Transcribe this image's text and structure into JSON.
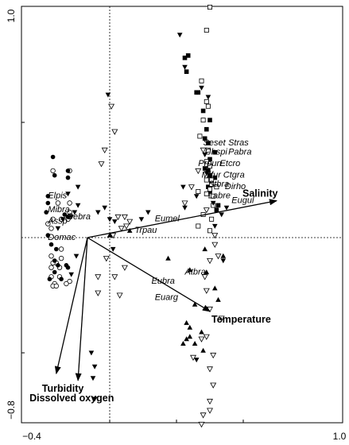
{
  "chart_data": {
    "type": "scatter",
    "title": "",
    "xlabel": "",
    "ylabel": "",
    "xlim": [
      -0.4,
      1.0
    ],
    "ylim": [
      -0.8,
      1.0
    ],
    "x_ticks": [
      {
        "value": -0.4,
        "label": "−0.4"
      },
      {
        "value": 1.0,
        "label": "1.0"
      }
    ],
    "y_ticks": [
      {
        "value": 1.0,
        "label": "1.0"
      },
      {
        "value": -0.8,
        "label": "−0.8"
      }
    ],
    "minor_ticks_x": [
      0.0,
      0.4,
      0.8
    ],
    "minor_ticks_y": [
      0.5,
      -0.5
    ],
    "zero_lines": true,
    "grid": false,
    "env_vectors": [
      {
        "name": "Salinity",
        "x": 1.0,
        "y": 0.16
      },
      {
        "name": "Temperature",
        "x": 0.6,
        "y": -0.32
      },
      {
        "name": "Turbidity",
        "x": -0.32,
        "y": -0.59
      },
      {
        "name": "Dissolved oxygen",
        "x": -0.19,
        "y": -0.62
      }
    ],
    "species": [
      {
        "name": "Seset",
        "x": 0.56,
        "y": 0.4
      },
      {
        "name": "Stras",
        "x": 0.71,
        "y": 0.4
      },
      {
        "name": "Chspi",
        "x": 0.57,
        "y": 0.36
      },
      {
        "name": "Pabra",
        "x": 0.71,
        "y": 0.36
      },
      {
        "name": "Prpun",
        "x": 0.53,
        "y": 0.31
      },
      {
        "name": "Etcro",
        "x": 0.66,
        "y": 0.31
      },
      {
        "name": "Mifur",
        "x": 0.55,
        "y": 0.26
      },
      {
        "name": "Ctgra",
        "x": 0.68,
        "y": 0.26
      },
      {
        "name": "Stbra",
        "x": 0.59,
        "y": 0.22
      },
      {
        "name": "Dirho",
        "x": 0.69,
        "y": 0.21
      },
      {
        "name": "Labre",
        "x": 0.59,
        "y": 0.17
      },
      {
        "name": "Eugul",
        "x": 0.73,
        "y": 0.15
      },
      {
        "name": "Eumel",
        "x": 0.27,
        "y": 0.07
      },
      {
        "name": "Trpau",
        "x": 0.15,
        "y": 0.02
      },
      {
        "name": "Elpis",
        "x": -0.37,
        "y": 0.17
      },
      {
        "name": "Mibra",
        "x": -0.37,
        "y": 0.11
      },
      {
        "name": "Gebra",
        "x": -0.26,
        "y": 0.08
      },
      {
        "name": "Assp",
        "x": -0.37,
        "y": 0.06
      },
      {
        "name": "Domac",
        "x": -0.37,
        "y": -0.01
      },
      {
        "name": "Atbra",
        "x": 0.45,
        "y": -0.16
      },
      {
        "name": "Eubra",
        "x": 0.25,
        "y": -0.2
      },
      {
        "name": "Euarg",
        "x": 0.27,
        "y": -0.27
      }
    ],
    "samples": {
      "open_circle": [
        [
          -0.34,
          0.29
        ],
        [
          -0.24,
          0.29
        ],
        [
          -0.31,
          0.15
        ],
        [
          -0.34,
          0.08
        ],
        [
          -0.37,
          0.06
        ],
        [
          -0.24,
          0.15
        ],
        [
          -0.25,
          0.08
        ],
        [
          -0.29,
          0.08
        ],
        [
          -0.24,
          0.11
        ],
        [
          -0.35,
          0.04
        ],
        [
          -0.35,
          -0.08
        ],
        [
          -0.32,
          -0.11
        ],
        [
          -0.34,
          -0.11
        ],
        [
          -0.29,
          -0.09
        ],
        [
          -0.3,
          -0.13
        ],
        [
          -0.35,
          -0.13
        ],
        [
          -0.33,
          -0.2
        ],
        [
          -0.35,
          -0.17
        ],
        [
          -0.34,
          -0.21
        ],
        [
          -0.32,
          -0.21
        ],
        [
          -0.24,
          -0.19
        ],
        [
          -0.26,
          -0.2
        ],
        [
          -0.3,
          -0.17
        ],
        [
          -0.29,
          -0.05
        ]
      ],
      "filled_circle": [
        [
          -0.34,
          0.35
        ],
        [
          -0.33,
          0.27
        ],
        [
          -0.25,
          0.29
        ],
        [
          -0.25,
          0.26
        ],
        [
          -0.37,
          0.18
        ],
        [
          -0.37,
          0.15
        ],
        [
          -0.38,
          0.11
        ],
        [
          -0.27,
          0.1
        ],
        [
          -0.25,
          0.09
        ],
        [
          -0.37,
          0.01
        ],
        [
          -0.35,
          -0.03
        ],
        [
          -0.32,
          -0.05
        ],
        [
          -0.33,
          -0.1
        ],
        [
          -0.31,
          -0.12
        ],
        [
          -0.26,
          -0.12
        ],
        [
          -0.25,
          -0.13
        ],
        [
          -0.33,
          -0.15
        ],
        [
          -0.29,
          -0.18
        ],
        [
          -0.36,
          -0.18
        ]
      ],
      "filled_square": [
        [
          0.45,
          0.78
        ],
        [
          0.47,
          0.79
        ],
        [
          0.46,
          0.72
        ],
        [
          0.52,
          0.63
        ],
        [
          0.53,
          0.63
        ],
        [
          0.56,
          0.55
        ],
        [
          0.6,
          0.51
        ],
        [
          0.58,
          0.47
        ],
        [
          0.57,
          0.43
        ],
        [
          0.59,
          0.41
        ],
        [
          0.6,
          0.34
        ],
        [
          0.63,
          0.37
        ],
        [
          0.57,
          0.3
        ],
        [
          0.59,
          0.29
        ],
        [
          0.6,
          0.27
        ],
        [
          0.63,
          0.26
        ],
        [
          0.59,
          0.22
        ],
        [
          0.6,
          0.2
        ],
        [
          0.65,
          0.14
        ],
        [
          0.64,
          0.12
        ]
      ],
      "open_square": [
        [
          0.6,
          1.0
        ],
        [
          0.58,
          0.9
        ],
        [
          0.55,
          0.68
        ],
        [
          0.58,
          0.59
        ],
        [
          0.59,
          0.57
        ],
        [
          0.56,
          0.51
        ],
        [
          0.54,
          0.44
        ],
        [
          0.59,
          0.38
        ],
        [
          0.58,
          0.33
        ],
        [
          0.6,
          0.31
        ],
        [
          0.58,
          0.25
        ],
        [
          0.61,
          0.25
        ],
        [
          0.61,
          0.23
        ],
        [
          0.6,
          0.21
        ],
        [
          0.53,
          0.2
        ],
        [
          0.58,
          0.19
        ],
        [
          0.62,
          0.18
        ],
        [
          0.64,
          0.22
        ],
        [
          0.62,
          0.14
        ],
        [
          0.61,
          0.08
        ],
        [
          0.53,
          0.05
        ],
        [
          0.56,
          0.1
        ],
        [
          0.6,
          0.03
        ]
      ],
      "filled_triangle": [
        [
          0.0,
          0.01
        ],
        [
          0.12,
          0.03
        ],
        [
          0.35,
          -0.09
        ],
        [
          0.57,
          -0.05
        ],
        [
          0.68,
          -0.08
        ],
        [
          0.48,
          -0.14
        ],
        [
          0.58,
          -0.15
        ],
        [
          0.63,
          -0.22
        ],
        [
          0.65,
          -0.27
        ],
        [
          0.51,
          -0.29
        ],
        [
          0.46,
          -0.37
        ],
        [
          0.48,
          -0.39
        ],
        [
          0.48,
          -0.43
        ],
        [
          0.44,
          -0.46
        ],
        [
          0.51,
          -0.46
        ],
        [
          0.55,
          -0.41
        ],
        [
          0.56,
          -0.49
        ],
        [
          0.46,
          -0.44
        ]
      ],
      "filled_inv_triangle": [
        [
          0.42,
          0.88
        ],
        [
          0.45,
          0.74
        ],
        [
          0.55,
          0.65
        ],
        [
          0.59,
          0.61
        ],
        [
          0.57,
          0.36
        ],
        [
          0.67,
          0.1
        ],
        [
          0.62,
          0.15
        ],
        [
          0.7,
          0.13
        ],
        [
          0.45,
          0.13
        ],
        [
          0.63,
          0.05
        ],
        [
          0.52,
          0.18
        ],
        [
          0.58,
          0.28
        ],
        [
          0.19,
          0.08
        ],
        [
          0.23,
          0.11
        ],
        [
          -0.19,
          0.14
        ],
        [
          -0.21,
          0.11
        ],
        [
          -0.23,
          0.09
        ],
        [
          -0.03,
          0.13
        ],
        [
          0.03,
          0.07
        ],
        [
          -0.28,
          0.08
        ],
        [
          -0.31,
          0.04
        ],
        [
          -0.2,
          -0.08
        ],
        [
          -0.23,
          -0.16
        ],
        [
          -0.07,
          0.11
        ],
        [
          -0.19,
          0.22
        ],
        [
          -0.25,
          0.19
        ],
        [
          -0.01,
          0.62
        ],
        [
          -0.11,
          -0.5
        ],
        [
          -0.09,
          -0.56
        ],
        [
          -0.1,
          -0.61
        ],
        [
          -0.09,
          -0.7
        ],
        [
          0.0,
          0.08
        ],
        [
          0.02,
          -0.05
        ],
        [
          0.68,
          -0.1
        ],
        [
          0.44,
          0.22
        ],
        [
          0.52,
          -0.53
        ]
      ],
      "open_inv_triangle": [
        [
          0.01,
          0.57
        ],
        [
          0.03,
          0.46
        ],
        [
          -0.03,
          0.38
        ],
        [
          -0.05,
          0.32
        ],
        [
          0.09,
          0.09
        ],
        [
          0.1,
          0.05
        ],
        [
          0.12,
          0.07
        ],
        [
          0.02,
          0.01
        ],
        [
          -0.02,
          -0.09
        ],
        [
          0.09,
          -0.13
        ],
        [
          0.03,
          -0.17
        ],
        [
          0.06,
          -0.25
        ],
        [
          -0.07,
          -0.17
        ],
        [
          -0.07,
          -0.24
        ],
        [
          0.07,
          0.04
        ],
        [
          0.05,
          0.09
        ],
        [
          0.58,
          0.12
        ],
        [
          0.63,
          0.01
        ],
        [
          0.63,
          -0.03
        ],
        [
          0.6,
          -0.1
        ],
        [
          0.65,
          -0.08
        ],
        [
          0.57,
          -0.17
        ],
        [
          0.58,
          -0.23
        ],
        [
          0.6,
          -0.31
        ],
        [
          0.67,
          -0.35
        ],
        [
          0.55,
          -0.44
        ],
        [
          0.58,
          -0.43
        ],
        [
          0.62,
          -0.51
        ],
        [
          0.6,
          -0.57
        ],
        [
          0.62,
          -0.64
        ],
        [
          0.6,
          -0.71
        ],
        [
          0.6,
          -0.75
        ],
        [
          0.56,
          -0.77
        ],
        [
          0.55,
          -0.81
        ],
        [
          0.5,
          -0.52
        ],
        [
          0.45,
          0.15
        ],
        [
          0.49,
          0.22
        ],
        [
          0.53,
          0.29
        ],
        [
          0.56,
          0.38
        ]
      ]
    }
  }
}
